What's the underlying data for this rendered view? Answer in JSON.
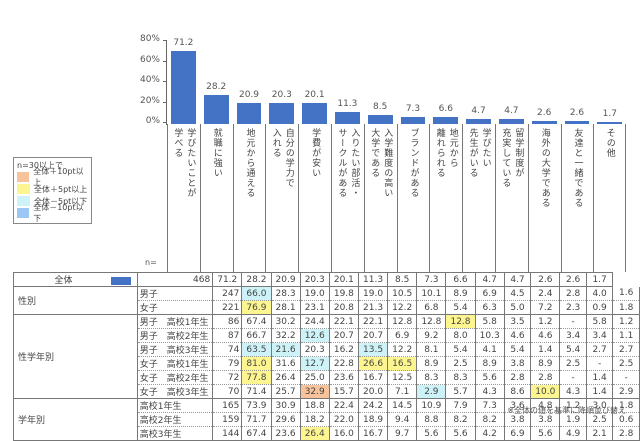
{
  "chart_data": {
    "type": "bar",
    "title": "",
    "ylabel": "",
    "ylim": [
      0,
      80
    ],
    "yticks": [
      "80%",
      "60%",
      "40%",
      "20%",
      "0%"
    ],
    "categories": [
      "学びたいことが学べる",
      "就職に強い",
      "地元から通える",
      "自分の学力で入れる",
      "学費が安い",
      "入りたい部活・サークルがある",
      "入学難度の高い大学である",
      "ブランドがある",
      "地元から離れられる",
      "学びたい先生がいる",
      "留学制度が充実している",
      "海外の大学である",
      "友達と一緒である",
      "その他"
    ],
    "values": [
      71.2,
      28.2,
      20.9,
      20.3,
      20.1,
      11.3,
      8.5,
      7.3,
      6.6,
      4.7,
      4.7,
      2.6,
      2.6,
      1.7
    ],
    "series": [
      {
        "name": "全体",
        "color": "#4472c4",
        "values": [
          71.2,
          28.2,
          20.9,
          20.3,
          20.1,
          11.3,
          8.5,
          7.3,
          6.6,
          4.7,
          4.7,
          2.6,
          2.6,
          1.7
        ]
      }
    ],
    "grid": false,
    "legend_position": "left"
  },
  "header_lines": [
    [
      "学びたいことが",
      "学べる"
    ],
    [
      "就職に強い"
    ],
    [
      "地元から通える"
    ],
    [
      "自分の学力で",
      "入れる"
    ],
    [
      "学費が安い"
    ],
    [
      "入りたい部活・",
      "サークルがある"
    ],
    [
      "入学難度の高い",
      "大学である"
    ],
    [
      "ブランドがある"
    ],
    [
      "地元から",
      "離れられる"
    ],
    [
      "学びたい",
      "先生がいる"
    ],
    [
      "留学制度が",
      "充実している"
    ],
    [
      "海外の大学である"
    ],
    [
      "友達と一緒である"
    ],
    [
      "その他"
    ]
  ],
  "legend": {
    "title": "n=30以上で",
    "items": [
      {
        "label": "全体＋10pt以上",
        "color": "#f8c39a"
      },
      {
        "label": "全体＋5pt以上",
        "color": "#fdf58f"
      },
      {
        "label": "全体－5pt以下",
        "color": "#cdf3f8"
      },
      {
        "label": "全体－10pt以下",
        "color": "#9cc7f5"
      }
    ]
  },
  "n_label": "n=",
  "table": {
    "total": {
      "label": "全体",
      "n": "468",
      "values": [
        "71.2",
        "28.2",
        "20.9",
        "20.3",
        "20.1",
        "11.3",
        "8.5",
        "7.3",
        "6.6",
        "4.7",
        "4.7",
        "2.6",
        "2.6",
        "1.7"
      ]
    },
    "groups": [
      {
        "name": "性別",
        "rows": [
          {
            "label": "男子",
            "n": "247",
            "values": [
              "66.0",
              "28.3",
              "19.0",
              "19.8",
              "19.0",
              "10.5",
              "10.1",
              "8.9",
              "6.9",
              "4.5",
              "2.4",
              "2.8",
              "4.0",
              "1.6"
            ],
            "hl": {
              "0": "minus5"
            }
          },
          {
            "label": "女子",
            "n": "221",
            "values": [
              "76.9",
              "28.1",
              "23.1",
              "20.8",
              "21.3",
              "12.2",
              "6.8",
              "5.4",
              "6.3",
              "5.0",
              "7.2",
              "2.3",
              "0.9",
              "1.8"
            ],
            "hl": {
              "0": "plus5"
            }
          }
        ]
      },
      {
        "name": "性学年別",
        "rows": [
          {
            "label": "男子　高校1年生",
            "n": "86",
            "values": [
              "67.4",
              "30.2",
              "24.4",
              "22.1",
              "22.1",
              "12.8",
              "12.8",
              "12.8",
              "5.8",
              "3.5",
              "1.2",
              "-",
              "5.8",
              "1.2"
            ],
            "hl": {
              "7": "plus5"
            }
          },
          {
            "label": "男子　高校2年生",
            "n": "87",
            "values": [
              "66.7",
              "32.2",
              "12.6",
              "20.7",
              "20.7",
              "6.9",
              "9.2",
              "8.0",
              "10.3",
              "4.6",
              "4.6",
              "3.4",
              "3.4",
              "1.1"
            ],
            "hl": {
              "2": "minus5"
            }
          },
          {
            "label": "男子　高校3年生",
            "n": "74",
            "values": [
              "63.5",
              "21.6",
              "20.3",
              "16.2",
              "13.5",
              "12.2",
              "8.1",
              "5.4",
              "4.1",
              "5.4",
              "1.4",
              "5.4",
              "2.7",
              "2.7"
            ],
            "hl": {
              "0": "minus5",
              "1": "minus5",
              "4": "minus5"
            }
          },
          {
            "label": "女子　高校1年生",
            "n": "79",
            "values": [
              "81.0",
              "31.6",
              "12.7",
              "22.8",
              "26.6",
              "16.5",
              "8.9",
              "2.5",
              "8.9",
              "3.8",
              "8.9",
              "2.5",
              "-",
              "2.5"
            ],
            "hl": {
              "0": "plus5",
              "2": "minus5",
              "4": "plus5",
              "5": "plus5"
            }
          },
          {
            "label": "女子　高校2年生",
            "n": "72",
            "values": [
              "77.8",
              "26.4",
              "25.0",
              "23.6",
              "16.7",
              "12.5",
              "8.3",
              "8.3",
              "5.6",
              "2.8",
              "2.8",
              "-",
              "1.4",
              "-"
            ],
            "hl": {
              "0": "plus5"
            }
          },
          {
            "label": "女子　高校3年生",
            "n": "70",
            "values": [
              "71.4",
              "25.7",
              "32.9",
              "15.7",
              "20.0",
              "7.1",
              "2.9",
              "5.7",
              "4.3",
              "8.6",
              "10.0",
              "4.3",
              "1.4",
              "2.9"
            ],
            "hl": {
              "2": "plus10",
              "6": "minus5",
              "10": "plus5"
            }
          }
        ]
      },
      {
        "name": "学年別",
        "rows": [
          {
            "label": "高校1年生",
            "n": "165",
            "values": [
              "73.9",
              "30.9",
              "18.8",
              "22.4",
              "24.2",
              "14.5",
              "10.9",
              "7.9",
              "7.3",
              "3.6",
              "4.8",
              "1.2",
              "3.0",
              "1.8"
            ],
            "hl": {}
          },
          {
            "label": "高校2年生",
            "n": "159",
            "values": [
              "71.7",
              "29.6",
              "18.2",
              "22.0",
              "18.9",
              "9.4",
              "8.8",
              "8.2",
              "8.2",
              "3.8",
              "3.8",
              "1.9",
              "2.5",
              "0.6"
            ],
            "hl": {}
          },
          {
            "label": "高校3年生",
            "n": "144",
            "values": [
              "67.4",
              "23.6",
              "26.4",
              "16.0",
              "16.7",
              "9.7",
              "5.6",
              "5.6",
              "4.2",
              "6.9",
              "5.6",
              "4.9",
              "2.1",
              "2.8"
            ],
            "hl": {
              "2": "plus5"
            }
          }
        ]
      }
    ]
  },
  "highlight_colors": {
    "plus10": "#f8c39a",
    "plus5": "#fdf58f",
    "minus5": "#cdf3f8",
    "minus10": "#9cc7f5"
  },
  "bar_color": "#4472c4",
  "footnote": "※全体の値を基準に降順並び替え"
}
